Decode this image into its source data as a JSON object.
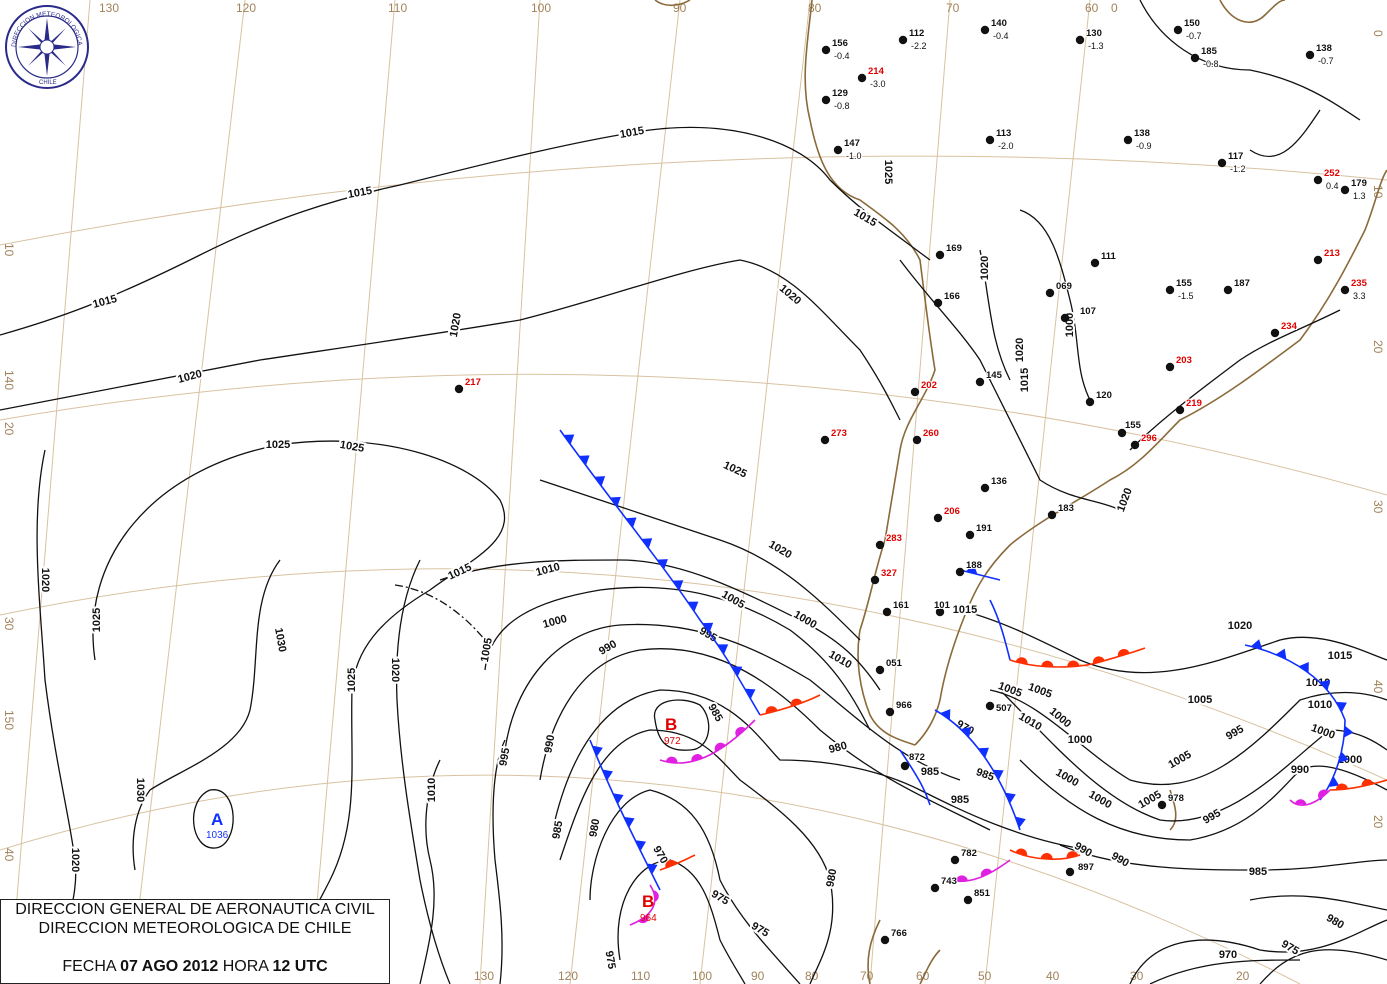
{
  "logo": {
    "text_top": "DIRECCION METEOROLOGICA",
    "text_bottom": "CHILE"
  },
  "title_box": {
    "line1": "DIRECCION GENERAL DE AERONAUTICA CIVIL",
    "line2": "DIRECCION METEOROLOGICA DE CHILE",
    "date_prefix": "FECHA",
    "date": "07 AGO 2012",
    "hour_prefix": "HORA",
    "hour": "12 UTC"
  },
  "grid_labels": {
    "top": [
      "130",
      "120",
      "110",
      "100",
      "90",
      "80",
      "70",
      "60",
      "0"
    ],
    "left": [
      "10",
      "140",
      "20",
      "30",
      "150",
      "40"
    ],
    "right": [
      "0",
      "10",
      "20",
      "30",
      "40",
      "20"
    ],
    "bottom": [
      "130",
      "120",
      "110",
      "100",
      "90",
      "80",
      "70",
      "60",
      "50",
      "40",
      "30",
      "20"
    ]
  },
  "isobar_labels": [
    "1015",
    "1015",
    "1015",
    "1015",
    "1020",
    "1020",
    "1020",
    "1025",
    "1025",
    "1025",
    "1030",
    "1025",
    "1025",
    "1020",
    "1020",
    "1020",
    "1030",
    "1010",
    "1015",
    "1020",
    "1005",
    "1000",
    "995",
    "990",
    "985",
    "980",
    "975",
    "970",
    "1010",
    "1005",
    "1000",
    "995",
    "990",
    "985",
    "980",
    "975",
    "970",
    "1005",
    "1000",
    "995",
    "990",
    "985",
    "980",
    "975",
    "970",
    "1015",
    "1020",
    "1010",
    "1005",
    "1010",
    "1000",
    "1005",
    "1000",
    "1015",
    "1020",
    "990",
    "985",
    "985",
    "995",
    "1000",
    "1005",
    "1010",
    "1020",
    "1015",
    "1000",
    "990",
    "985",
    "980",
    "975",
    "1020",
    "1025",
    "1010",
    "1000",
    "1000",
    "1005"
  ],
  "pressure_centers": [
    {
      "letter": "A",
      "value": "1036",
      "color": "#1030ff"
    },
    {
      "letter": "B",
      "value": "972",
      "color": "#e00000"
    },
    {
      "letter": "B",
      "value": "964",
      "color": "#e00000"
    }
  ],
  "colors": {
    "cold_front": "#1030ff",
    "warm_front": "#ff3000",
    "occluded_front": "#e020e0",
    "coast": "#8a6a3a",
    "grid": "#d8c2a0"
  },
  "stations": [
    {
      "id": "156",
      "tendency": "-0.4"
    },
    {
      "id": "129",
      "tendency": "-0.8"
    },
    {
      "id": "214",
      "tendency": "-3.0",
      "highlight": true
    },
    {
      "id": "112",
      "tendency": "-2.2"
    },
    {
      "id": "140",
      "tendency": "-0.4"
    },
    {
      "id": "130",
      "tendency": "-1.3"
    },
    {
      "id": "150",
      "tendency": "-0.7"
    },
    {
      "id": "185",
      "tendency": "-0.8"
    },
    {
      "id": "138",
      "tendency": "-0.7"
    },
    {
      "id": "147",
      "tendency": "-1.0"
    },
    {
      "id": "113",
      "tendency": "-2.0"
    },
    {
      "id": "138",
      "tendency": "-0.9"
    },
    {
      "id": "117",
      "tendency": "-1.2"
    },
    {
      "id": "252",
      "tendency": "0.4",
      "highlight": true
    },
    {
      "id": "179",
      "tendency": "1.3"
    },
    {
      "id": "217",
      "tendency": "",
      "highlight": true
    },
    {
      "id": "202",
      "tendency": "",
      "highlight": true
    },
    {
      "id": "273",
      "tendency": "",
      "highlight": true
    },
    {
      "id": "260",
      "tendency": "",
      "highlight": true
    },
    {
      "id": "283",
      "tendency": "",
      "highlight": true
    },
    {
      "id": "327",
      "tendency": "",
      "highlight": true
    },
    {
      "id": "206",
      "tendency": "",
      "highlight": true
    },
    {
      "id": "219",
      "tendency": "",
      "highlight": true
    },
    {
      "id": "203",
      "tendency": "",
      "highlight": true
    },
    {
      "id": "234",
      "tendency": "",
      "highlight": true
    },
    {
      "id": "235",
      "tendency": "3.3",
      "highlight": true
    },
    {
      "id": "213",
      "tendency": "",
      "highlight": true
    },
    {
      "id": "296",
      "tendency": "",
      "highlight": true
    },
    {
      "id": "145",
      "tendency": ""
    },
    {
      "id": "155",
      "tendency": "-1.5"
    },
    {
      "id": "187",
      "tendency": ""
    },
    {
      "id": "169",
      "tendency": ""
    },
    {
      "id": "166",
      "tendency": ""
    },
    {
      "id": "111",
      "tendency": ""
    },
    {
      "id": "069",
      "tendency": ""
    },
    {
      "id": "107",
      "tendency": ""
    },
    {
      "id": "120",
      "tendency": ""
    },
    {
      "id": "155",
      "tendency": ""
    },
    {
      "id": "136",
      "tendency": ""
    },
    {
      "id": "183",
      "tendency": ""
    },
    {
      "id": "191",
      "tendency": ""
    },
    {
      "id": "188",
      "tendency": ""
    },
    {
      "id": "101",
      "tendency": ""
    },
    {
      "id": "161",
      "tendency": ""
    },
    {
      "id": "051",
      "tendency": ""
    },
    {
      "id": "966",
      "tendency": ""
    },
    {
      "id": "872",
      "tendency": ""
    },
    {
      "id": "507",
      "tendency": ""
    },
    {
      "id": "978",
      "tendency": ""
    },
    {
      "id": "782",
      "tendency": ""
    },
    {
      "id": "851",
      "tendency": ""
    },
    {
      "id": "897",
      "tendency": ""
    },
    {
      "id": "766",
      "tendency": ""
    },
    {
      "id": "743",
      "tendency": ""
    }
  ]
}
